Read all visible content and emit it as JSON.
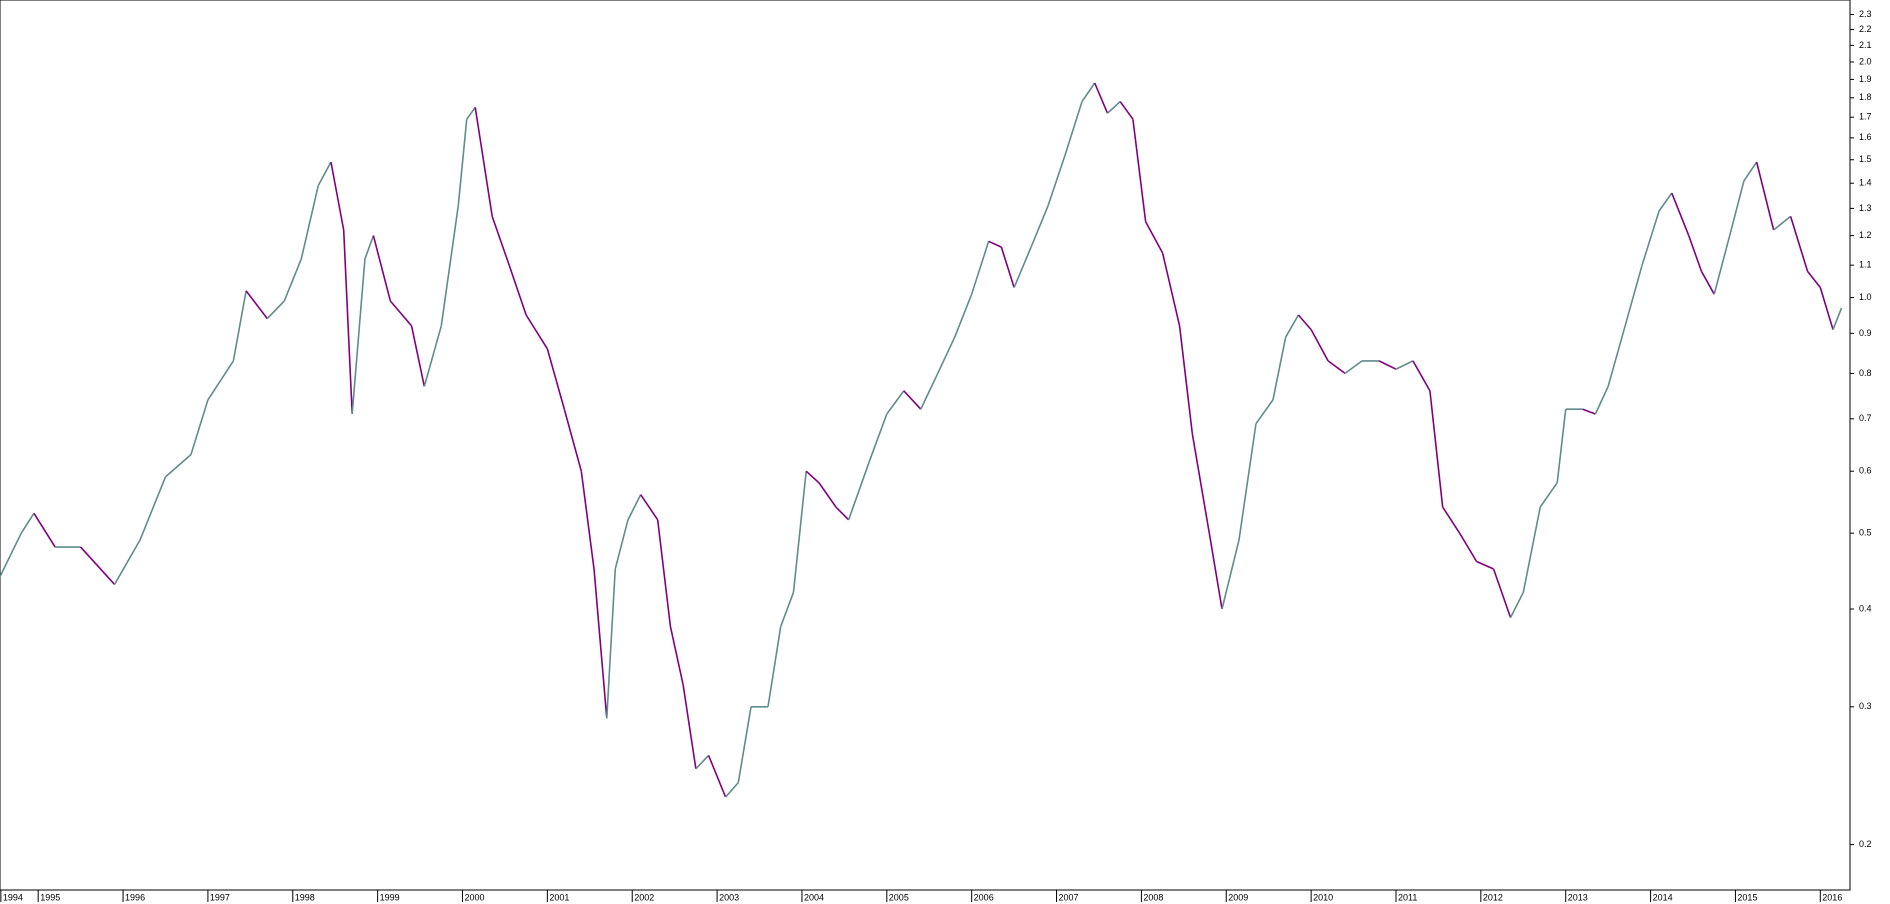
{
  "chart_data": {
    "type": "line",
    "log_scale": true,
    "up_color": "#5f8c8c",
    "down_color": "#800080",
    "x": [
      1994.55,
      1994.8,
      1994.95,
      1995.2,
      1995.5,
      1995.9,
      1996.2,
      1996.5,
      1996.8,
      1997.0,
      1997.3,
      1997.45,
      1997.7,
      1997.9,
      1998.1,
      1998.3,
      1998.45,
      1998.6,
      1998.7,
      1998.85,
      1998.95,
      1999.15,
      1999.4,
      1999.55,
      1999.75,
      1999.95,
      2000.05,
      2000.15,
      2000.35,
      2000.55,
      2000.75,
      2001.0,
      2001.2,
      2001.4,
      2001.55,
      2001.7,
      2001.8,
      2001.95,
      2002.1,
      2002.3,
      2002.45,
      2002.6,
      2002.75,
      2002.9,
      2003.1,
      2003.25,
      2003.4,
      2003.6,
      2003.75,
      2003.9,
      2004.05,
      2004.2,
      2004.4,
      2004.55,
      2004.8,
      2005.0,
      2005.2,
      2005.4,
      2005.6,
      2005.8,
      2006.0,
      2006.2,
      2006.35,
      2006.5,
      2006.7,
      2006.9,
      2007.1,
      2007.3,
      2007.45,
      2007.6,
      2007.75,
      2007.9,
      2008.05,
      2008.25,
      2008.45,
      2008.6,
      2008.8,
      2008.95,
      2009.15,
      2009.35,
      2009.55,
      2009.7,
      2009.85,
      2010.0,
      2010.2,
      2010.4,
      2010.6,
      2010.8,
      2011.0,
      2011.2,
      2011.4,
      2011.55,
      2011.75,
      2011.95,
      2012.15,
      2012.35,
      2012.5,
      2012.7,
      2012.9,
      2013.0,
      2013.2,
      2013.35,
      2013.5,
      2013.7,
      2013.9,
      2014.1,
      2014.25,
      2014.45,
      2014.6,
      2014.75,
      2014.95,
      2015.1,
      2015.25,
      2015.45,
      2015.65,
      2015.85,
      2016.0,
      2016.15,
      2016.25
    ],
    "series": [
      {
        "values": [
          0.44,
          0.5,
          0.53,
          0.48,
          0.48,
          0.43,
          0.49,
          0.59,
          0.63,
          0.74,
          0.83,
          1.02,
          0.94,
          0.99,
          1.12,
          1.39,
          1.49,
          1.22,
          0.71,
          1.12,
          1.2,
          0.99,
          0.92,
          0.77,
          0.92,
          1.31,
          1.69,
          1.75,
          1.27,
          1.1,
          0.95,
          0.86,
          0.72,
          0.6,
          0.45,
          0.29,
          0.45,
          0.52,
          0.56,
          0.52,
          0.38,
          0.32,
          0.25,
          0.26,
          0.23,
          0.24,
          0.3,
          0.3,
          0.38,
          0.42,
          0.6,
          0.58,
          0.54,
          0.52,
          0.62,
          0.71,
          0.76,
          0.72,
          0.8,
          0.89,
          1.01,
          1.18,
          1.16,
          1.03,
          1.16,
          1.31,
          1.52,
          1.78,
          1.88,
          1.72,
          1.78,
          1.69,
          1.25,
          1.14,
          0.92,
          0.67,
          0.5,
          0.4,
          0.49,
          0.69,
          0.74,
          0.89,
          0.95,
          0.91,
          0.83,
          0.8,
          0.83,
          0.83,
          0.81,
          0.83,
          0.76,
          0.54,
          0.5,
          0.46,
          0.45,
          0.39,
          0.42,
          0.54,
          0.58,
          0.72,
          0.72,
          0.71,
          0.77,
          0.92,
          1.1,
          1.29,
          1.36,
          1.2,
          1.08,
          1.01,
          1.22,
          1.41,
          1.49,
          1.22,
          1.27,
          1.08,
          1.03,
          0.91,
          0.97
        ]
      }
    ],
    "xlim": [
      1994.55,
      2016.35
    ],
    "xticks": [
      {
        "value": 1994.56,
        "label": "1994"
      },
      1995,
      1996,
      1997,
      1998,
      1999,
      2000,
      2001,
      2002,
      2003,
      2004,
      2005,
      2006,
      2007,
      2008,
      2009,
      2010,
      2011,
      2012,
      2013,
      2014,
      2015,
      2016
    ],
    "ylim": [
      0.175,
      2.4
    ],
    "yticks": [
      0.2,
      0.3,
      0.4,
      0.5,
      0.6,
      0.7,
      0.8,
      0.9,
      {
        "value": 1.0,
        "label": "1.0"
      },
      1.1,
      1.2,
      1.3,
      1.4,
      1.5,
      1.6,
      1.7,
      1.8,
      1.9,
      {
        "value": 2.0,
        "label": "2.0"
      },
      2.1,
      2.2,
      2.3
    ]
  }
}
